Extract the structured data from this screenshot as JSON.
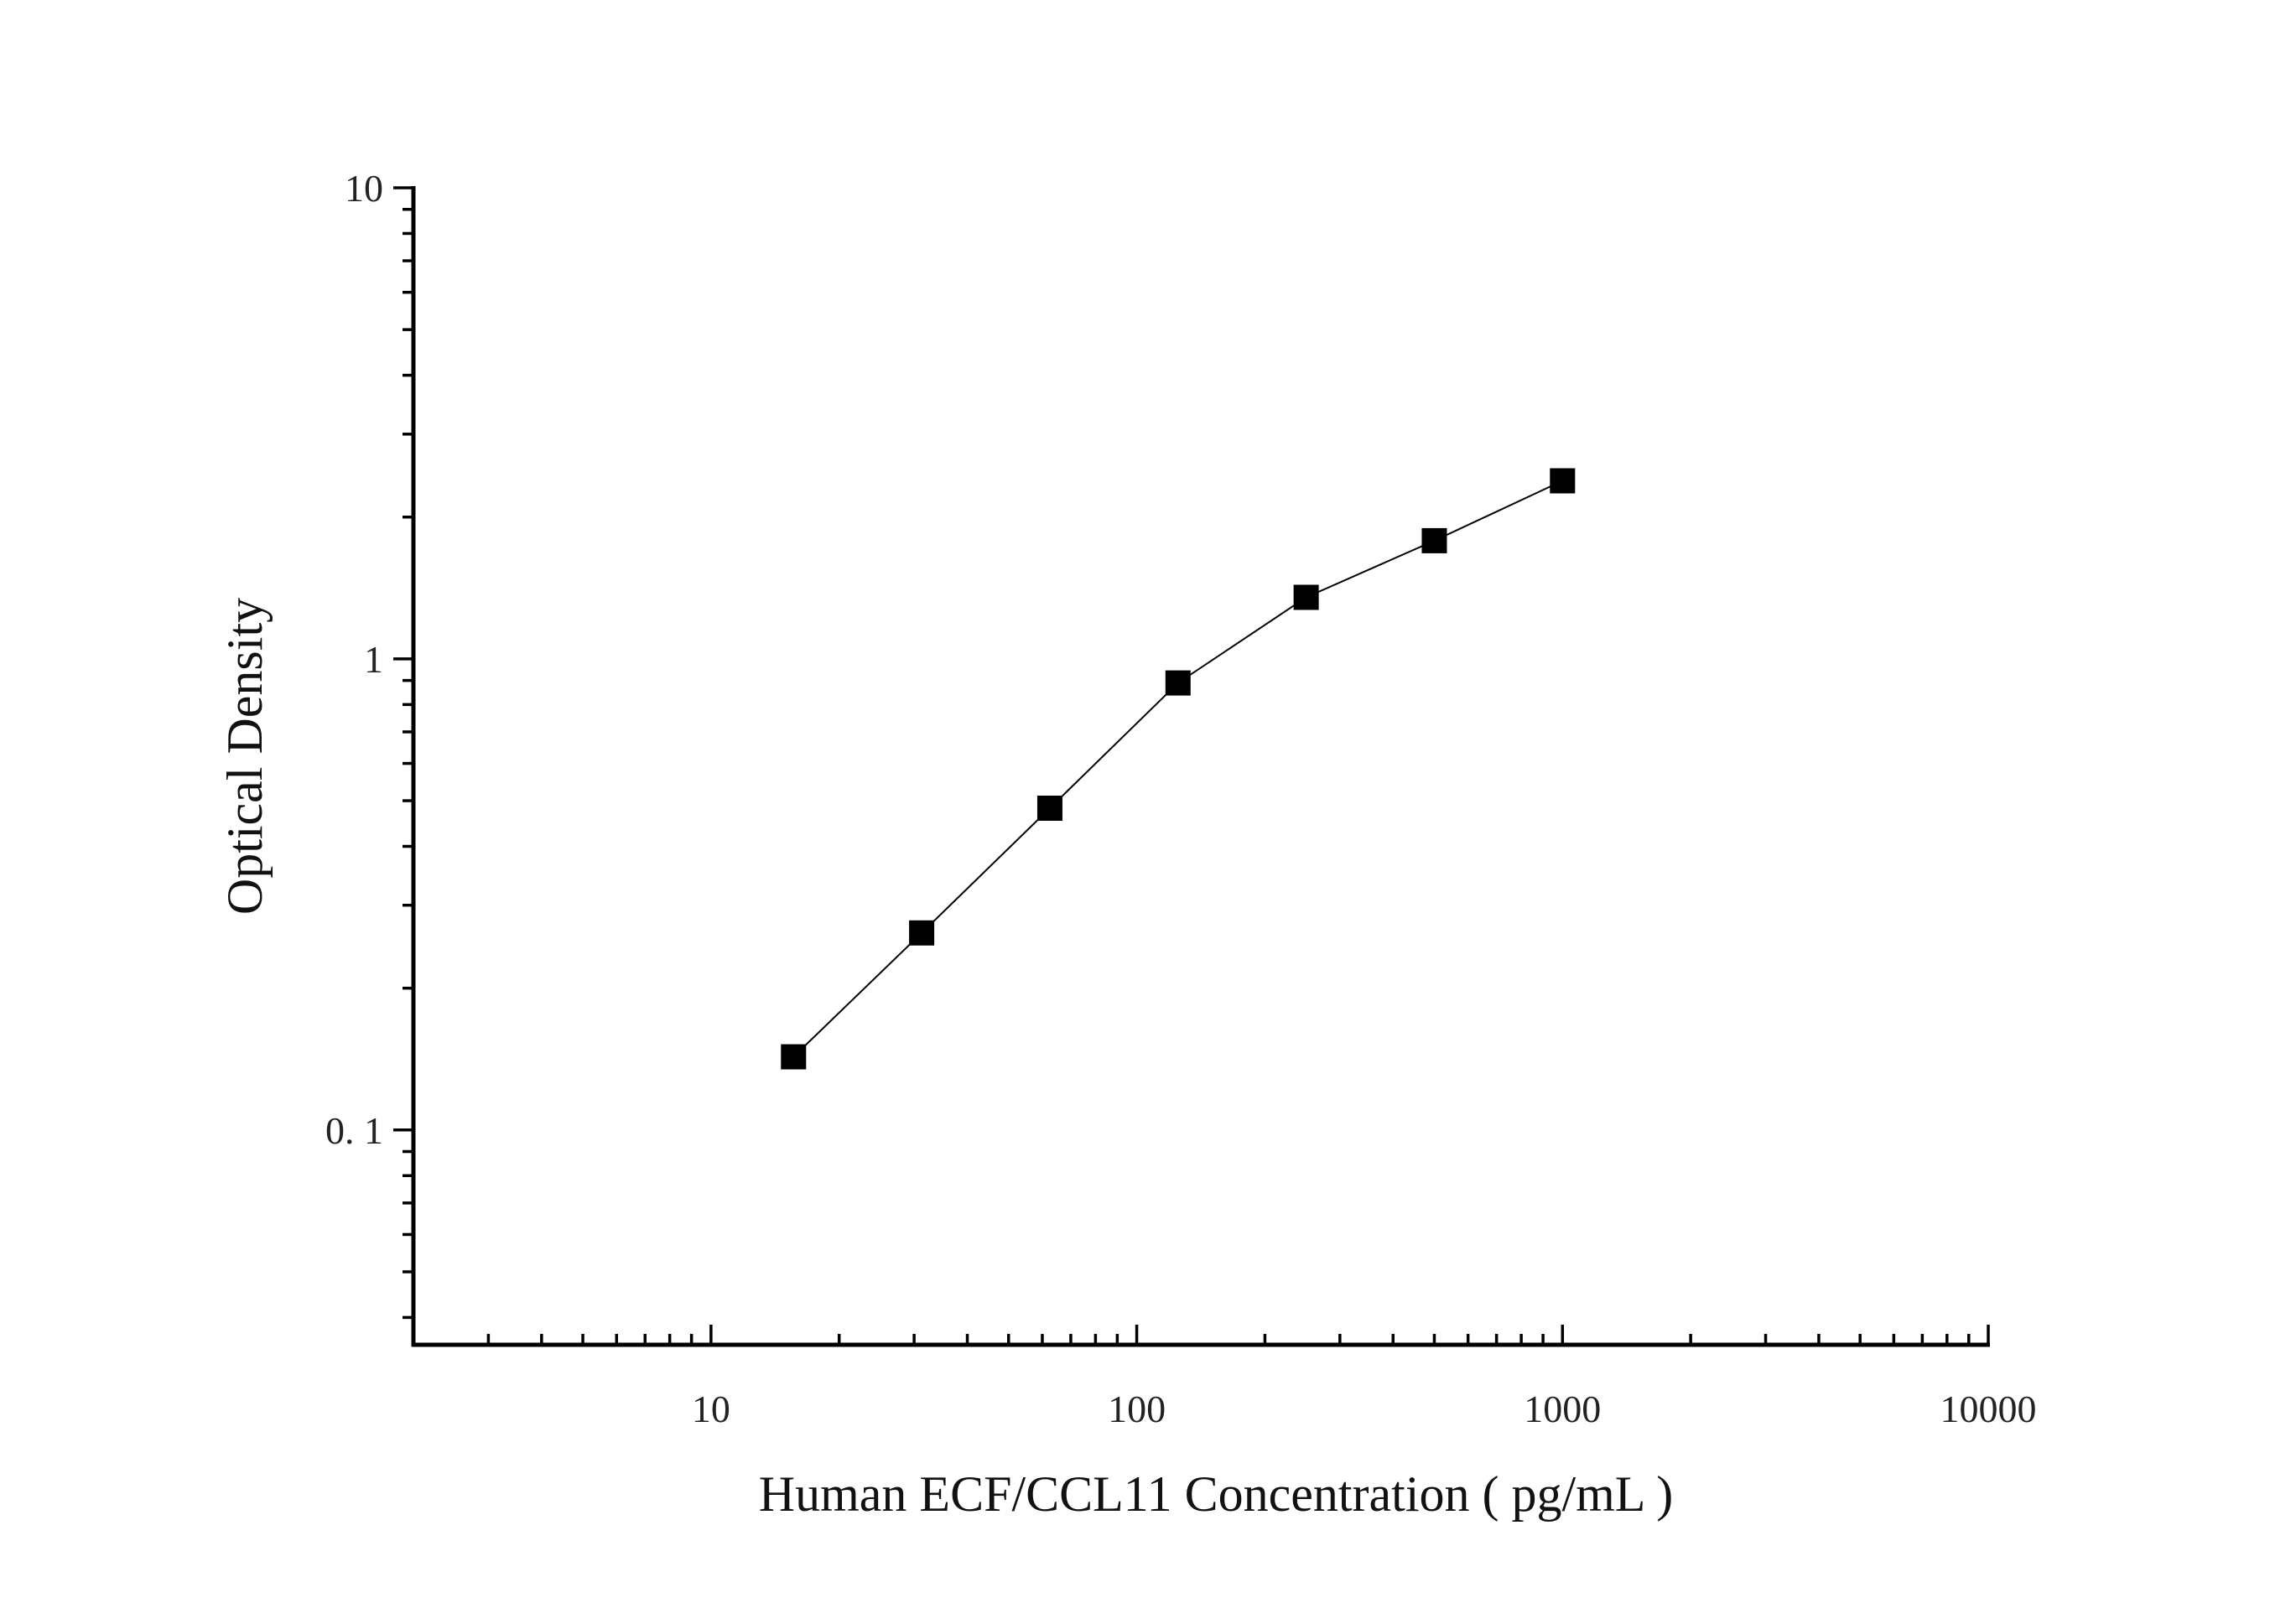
{
  "chart_data": {
    "type": "scatter",
    "title": "",
    "xlabel": "Human ECF/CCL11 Concentration ( pg/mL )",
    "ylabel": "Optical Density",
    "x_scale": "log",
    "y_scale": "log",
    "xlim": [
      2,
      10000
    ],
    "ylim": [
      0.035,
      10
    ],
    "x_ticks": [
      {
        "value": 10,
        "label": "10"
      },
      {
        "value": 100,
        "label": "100"
      },
      {
        "value": 1000,
        "label": "1000"
      },
      {
        "value": 10000,
        "label": "10000"
      }
    ],
    "y_ticks": [
      {
        "value": 0.1,
        "label": "0. 1"
      },
      {
        "value": 1,
        "label": "1"
      },
      {
        "value": 10,
        "label": "10"
      }
    ],
    "grid": false,
    "legend": "none",
    "marker": "square",
    "line_connected": true,
    "color": "#000000",
    "series": [
      {
        "x": [
          15.625,
          31.25,
          62.5,
          125,
          250,
          500,
          1000
        ],
        "y": [
          0.143,
          0.262,
          0.482,
          0.889,
          1.351,
          1.782,
          2.388
        ]
      }
    ]
  }
}
